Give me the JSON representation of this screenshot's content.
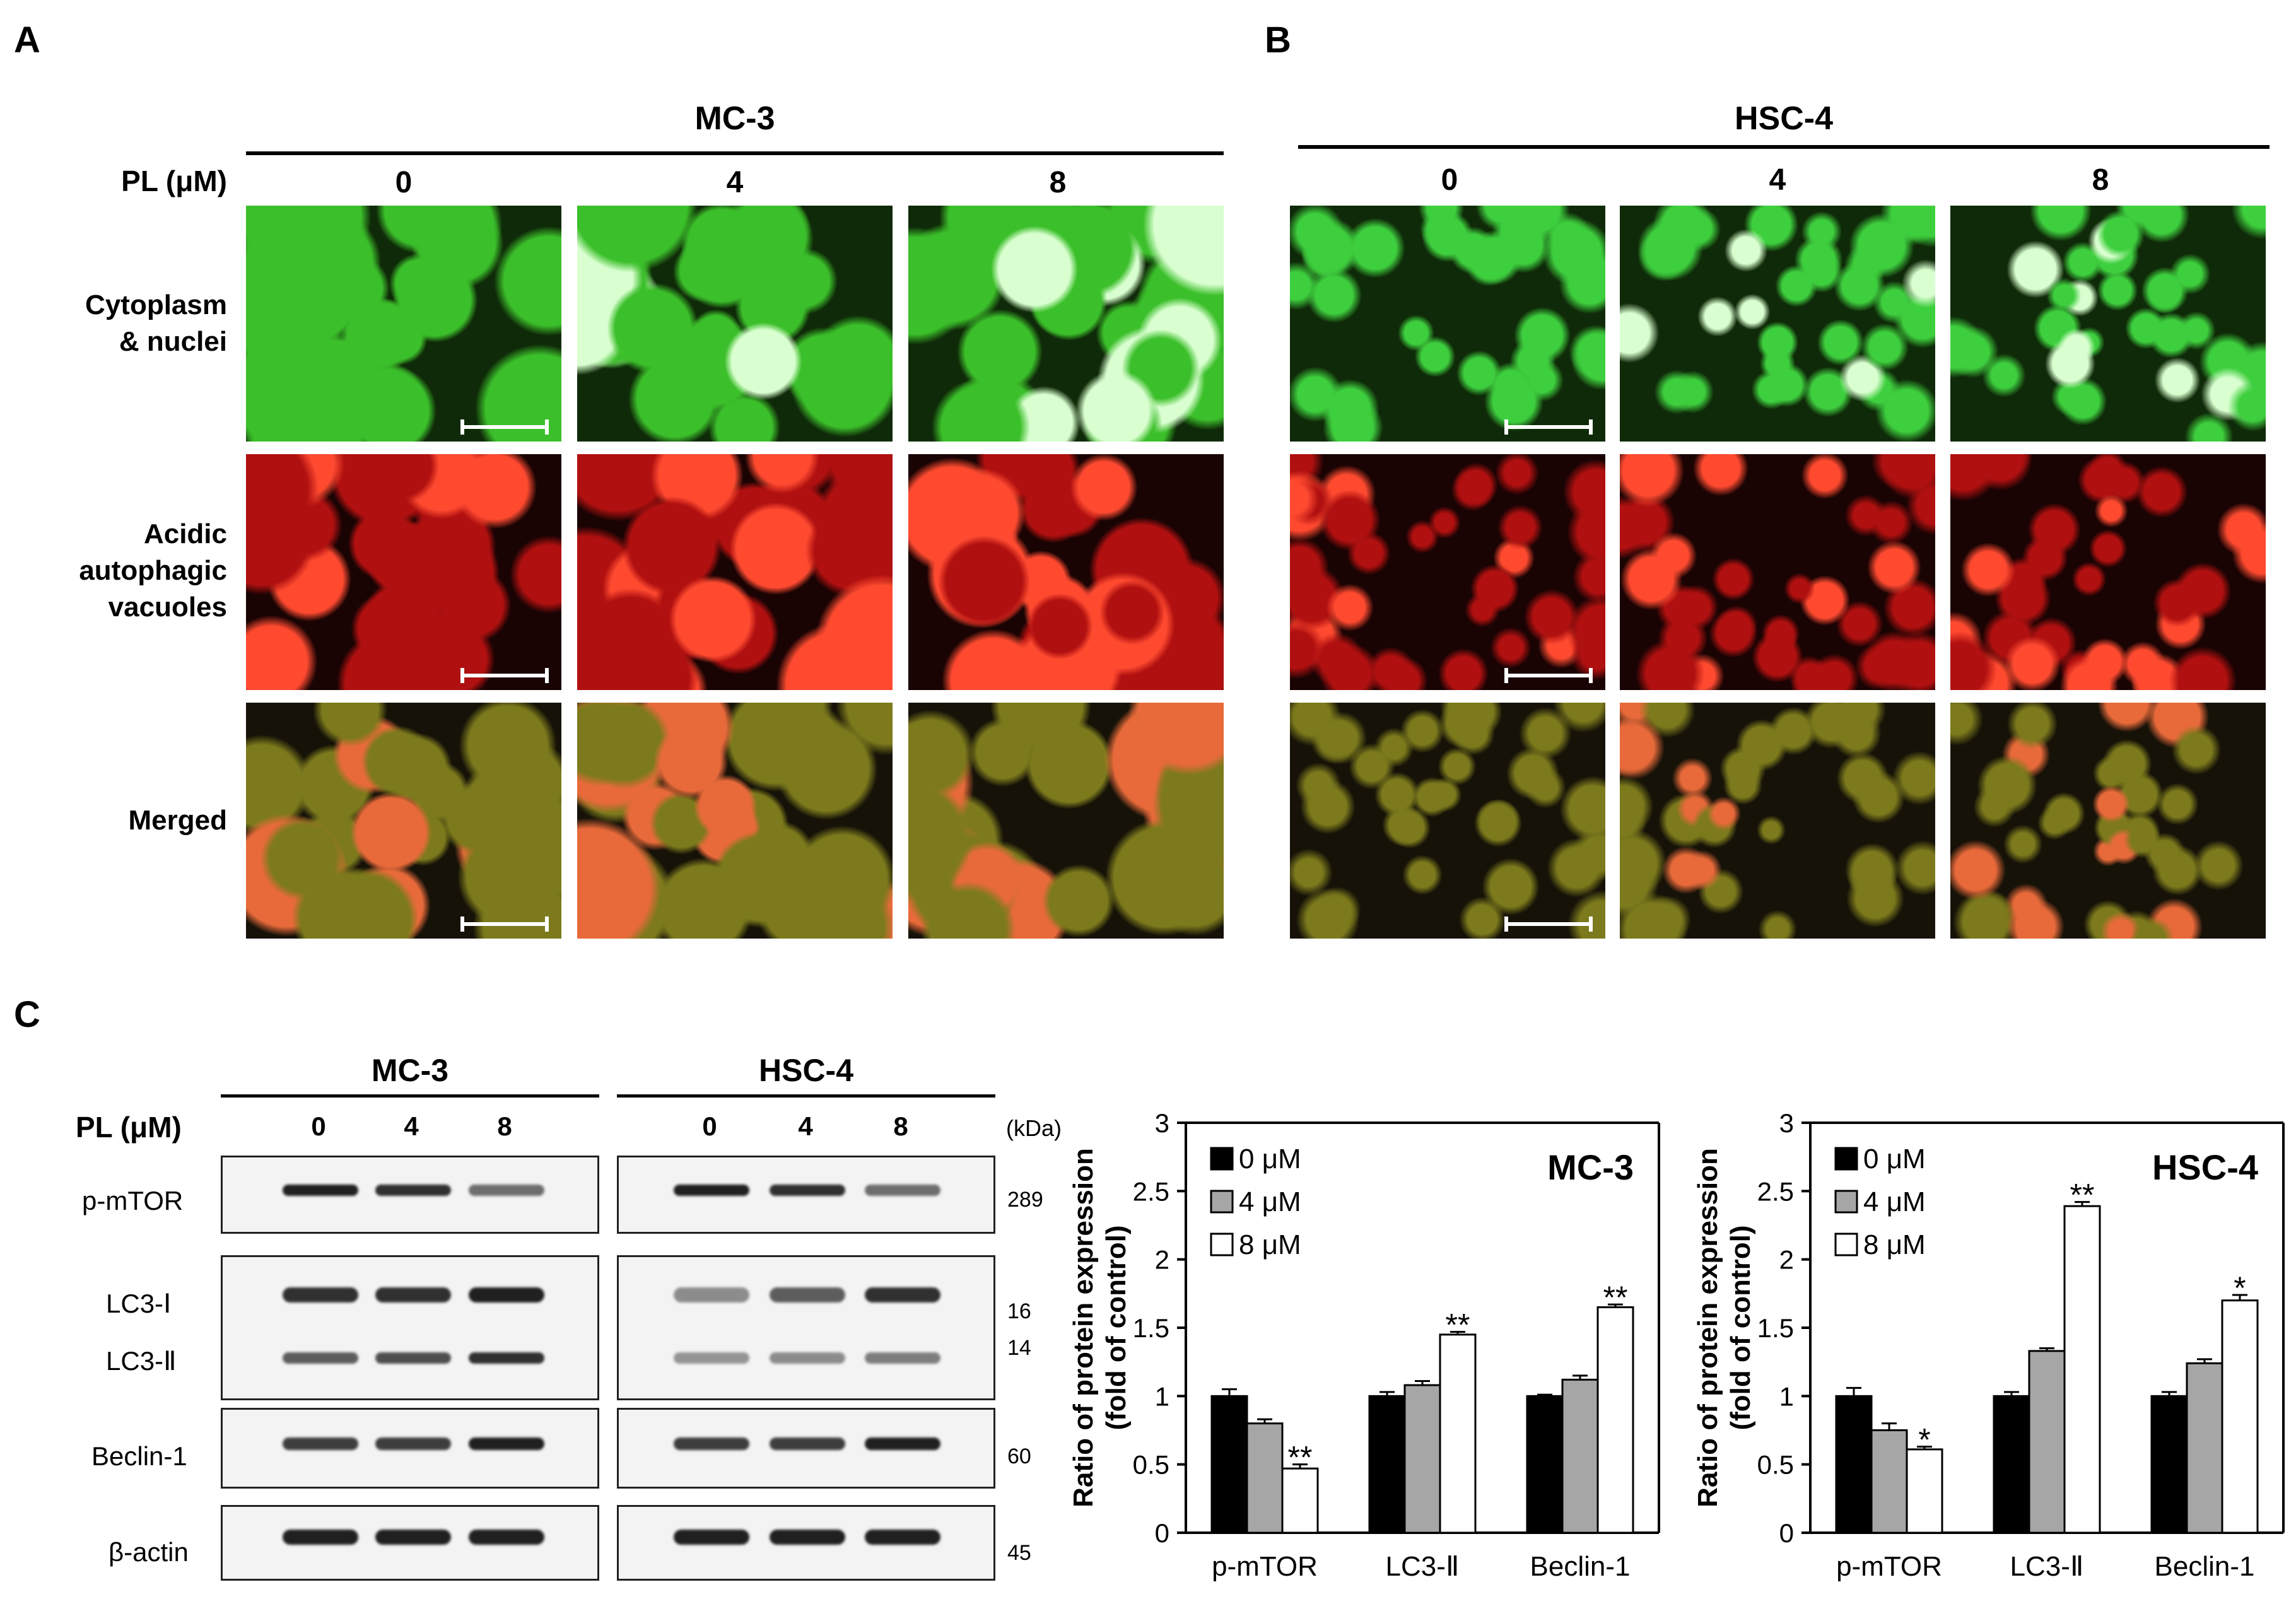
{
  "panels": {
    "A": "A",
    "B": "B",
    "C": "C"
  },
  "row_header_label": "PL (μM)",
  "panel_A": {
    "title": "MC-3",
    "concentrations": [
      "0",
      "4",
      "8"
    ],
    "row_labels": [
      [
        "Cytoplasm",
        "& nuclei"
      ],
      [
        "Acidic",
        "autophagic",
        "vacuoles"
      ],
      [
        "Merged"
      ]
    ]
  },
  "panel_B": {
    "title": "HSC-4",
    "concentrations": [
      "0",
      "4",
      "8"
    ]
  },
  "western": {
    "pl_label": "PL (μM)",
    "mc3_title": "MC-3",
    "hsc4_title": "HSC-4",
    "concentrations": [
      "0",
      "4",
      "8"
    ],
    "kda_unit": "(kDa)",
    "proteins": [
      "p-mTOR",
      "LC3-Ⅰ",
      "LC3-Ⅱ",
      "Beclin-1",
      "β-actin"
    ],
    "kda": [
      "289",
      "16",
      "14",
      "60",
      "45"
    ]
  },
  "colors": {
    "bar_0uM": "#000000",
    "bar_4uM": "#a6a6a6",
    "bar_8uM": "#ffffff",
    "green_stain": "#2fbf2f",
    "red_stain": "#c41010",
    "merged": "#7a6a10"
  },
  "chart_data": [
    {
      "type": "bar",
      "title": "MC-3",
      "ylabel": "Ratio of protein expression (fold of control)",
      "ylabel_lines": [
        "Ratio of protein expression",
        "(fold of control)"
      ],
      "categories": [
        "p-mTOR",
        "LC3-Ⅱ",
        "Beclin-1"
      ],
      "ylim": [
        0,
        3
      ],
      "yticks": [
        "0",
        "0.5",
        "1",
        "1.5",
        "2",
        "2.5",
        "3"
      ],
      "legend_position": "top-left",
      "series": [
        {
          "name": "0 μM",
          "values": [
            1.0,
            1.0,
            1.0
          ],
          "errors": [
            0.05,
            0.03,
            0.01
          ]
        },
        {
          "name": "4 μM",
          "values": [
            0.8,
            1.08,
            1.12
          ],
          "errors": [
            0.03,
            0.03,
            0.03
          ]
        },
        {
          "name": "8 μM",
          "values": [
            0.47,
            1.45,
            1.65
          ],
          "errors": [
            0.03,
            0.02,
            0.02
          ]
        }
      ],
      "annotations": [
        {
          "category": "p-mTOR",
          "series": "8 μM",
          "text": "**"
        },
        {
          "category": "LC3-Ⅱ",
          "series": "8 μM",
          "text": "**"
        },
        {
          "category": "Beclin-1",
          "series": "8 μM",
          "text": "**"
        }
      ]
    },
    {
      "type": "bar",
      "title": "HSC-4",
      "ylabel": "Ratio of protein expression (fold of control)",
      "ylabel_lines": [
        "Ratio of protein expression",
        "(fold of control)"
      ],
      "categories": [
        "p-mTOR",
        "LC3-Ⅱ",
        "Beclin-1"
      ],
      "ylim": [
        0,
        3
      ],
      "yticks": [
        "0",
        "0.5",
        "1",
        "1.5",
        "2",
        "2.5",
        "3"
      ],
      "legend_position": "top-left",
      "series": [
        {
          "name": "0 μM",
          "values": [
            1.0,
            1.0,
            1.0
          ],
          "errors": [
            0.06,
            0.03,
            0.03
          ]
        },
        {
          "name": "4 μM",
          "values": [
            0.75,
            1.33,
            1.24
          ],
          "errors": [
            0.05,
            0.02,
            0.03
          ]
        },
        {
          "name": "8 μM",
          "values": [
            0.61,
            2.39,
            1.7
          ],
          "errors": [
            0.02,
            0.03,
            0.04
          ]
        }
      ],
      "annotations": [
        {
          "category": "p-mTOR",
          "series": "8 μM",
          "text": "*"
        },
        {
          "category": "LC3-Ⅱ",
          "series": "8 μM",
          "text": "**"
        },
        {
          "category": "Beclin-1",
          "series": "8 μM",
          "text": "*"
        }
      ]
    }
  ]
}
